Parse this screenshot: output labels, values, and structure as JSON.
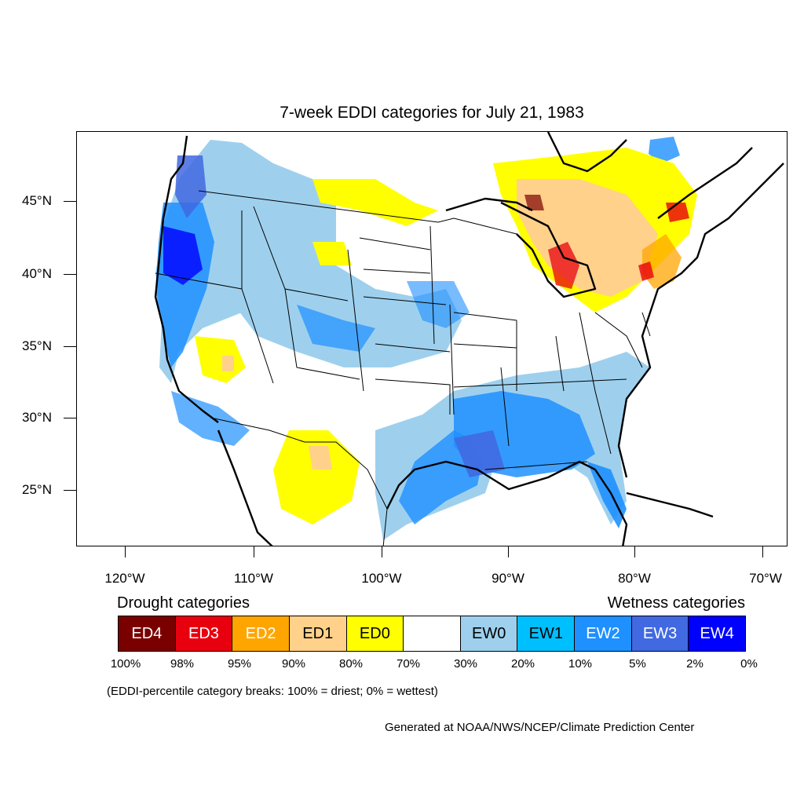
{
  "title": "7-week EDDI categories for July 21, 1983",
  "axes": {
    "lat_labels": [
      "45°N",
      "40°N",
      "35°N",
      "30°N",
      "25°N"
    ],
    "lon_labels": [
      "120°W",
      "110°W",
      "100°W",
      "90°W",
      "80°W",
      "70°W"
    ]
  },
  "legend": {
    "drought_heading": "Drought categories",
    "wetness_heading": "Wetness categories",
    "categories": [
      {
        "label": "ED4",
        "color": "#7a0000",
        "text_color": "#ffffff"
      },
      {
        "label": "ED3",
        "color": "#e8000f",
        "text_color": "#ffffff"
      },
      {
        "label": "ED2",
        "color": "#ffa500",
        "text_color": "#ffffff"
      },
      {
        "label": "ED1",
        "color": "#ffd18a",
        "text_color": "#000000"
      },
      {
        "label": "ED0",
        "color": "#ffff00",
        "text_color": "#000000"
      },
      {
        "label": "",
        "color": "#ffffff",
        "text_color": "#000000"
      },
      {
        "label": "EW0",
        "color": "#9ed0ee",
        "text_color": "#000000"
      },
      {
        "label": "EW1",
        "color": "#00bfff",
        "text_color": "#000000"
      },
      {
        "label": "EW2",
        "color": "#1e90ff",
        "text_color": "#ffffff"
      },
      {
        "label": "EW3",
        "color": "#4169e1",
        "text_color": "#ffffff"
      },
      {
        "label": "EW4",
        "color": "#0000ff",
        "text_color": "#ffffff"
      }
    ],
    "breaks": [
      "100%",
      "98%",
      "95%",
      "90%",
      "80%",
      "70%",
      "30%",
      "20%",
      "10%",
      "5%",
      "2%",
      "0%"
    ]
  },
  "note": "(EDDI-percentile category breaks: 100% = driest; 0% = wettest)",
  "credit": "Generated at NOAA/NWS/NCEP/Climate Prediction Center"
}
